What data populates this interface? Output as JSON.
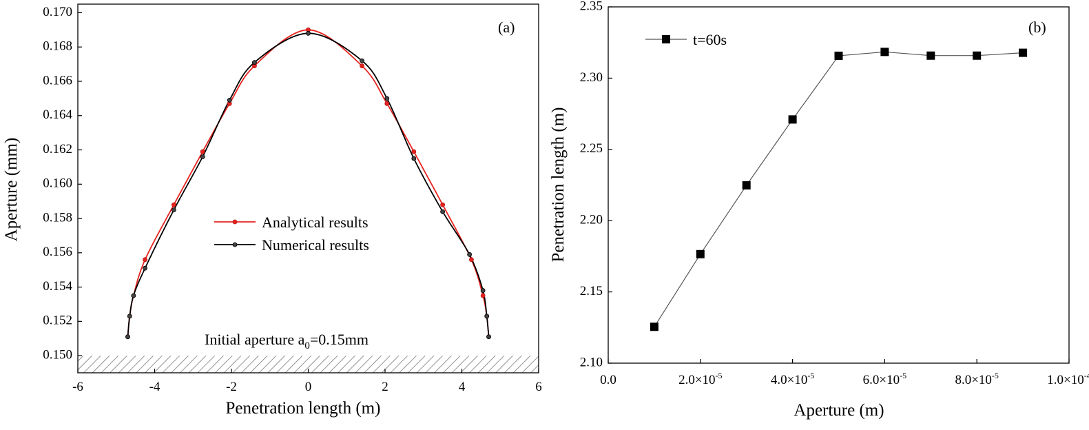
{
  "figure": {
    "panel_a_label": "(a)",
    "panel_b_label": "(b)",
    "note_prefix": "Initial aperture a",
    "note_sub": "0",
    "note_suffix": "=0.15mm"
  },
  "chart_data": [
    {
      "type": "line",
      "panel": "(a)",
      "xlabel": "Penetration length (m)",
      "ylabel": "Aperture (mm)",
      "xlim": [
        -6,
        6
      ],
      "ylim": [
        0.149,
        0.1705
      ],
      "xticks": [
        -6,
        -4,
        -2,
        0,
        2,
        4,
        6
      ],
      "xtick_labels": [
        "-6",
        "-4",
        "-2",
        "0",
        "2",
        "4",
        "6"
      ],
      "yticks": [
        0.15,
        0.152,
        0.154,
        0.156,
        0.158,
        0.16,
        0.162,
        0.164,
        0.166,
        0.168,
        0.17
      ],
      "ytick_labels": [
        "0.150",
        "0.152",
        "0.154",
        "0.156",
        "0.158",
        "0.160",
        "0.162",
        "0.164",
        "0.166",
        "0.168",
        "0.170"
      ],
      "grid": false,
      "legend_position": "center",
      "hatched_band": [
        0.149,
        0.15
      ],
      "series": [
        {
          "name": "Analytical results",
          "color": "#e8231f",
          "x": [
            -4.7,
            -4.65,
            -4.55,
            -4.25,
            -3.5,
            -2.75,
            -2.05,
            -1.4,
            0,
            1.4,
            2.05,
            2.75,
            3.5,
            4.25,
            4.55,
            4.65,
            4.7
          ],
          "y": [
            0.1511,
            0.1523,
            0.1535,
            0.1556,
            0.1588,
            0.1619,
            0.1647,
            0.1669,
            0.169,
            0.1669,
            0.1647,
            0.1619,
            0.1588,
            0.1556,
            0.1535,
            0.1523,
            0.1511
          ]
        },
        {
          "name": "Numerical results",
          "color": "#000000",
          "x": [
            -4.7,
            -4.65,
            -4.55,
            -4.25,
            -3.5,
            -2.75,
            -2.05,
            -1.4,
            0,
            1.4,
            2.05,
            2.75,
            3.5,
            4.2,
            4.55,
            4.65,
            4.7
          ],
          "y": [
            0.1511,
            0.1523,
            0.1535,
            0.1551,
            0.1585,
            0.1616,
            0.1649,
            0.1671,
            0.1688,
            0.1672,
            0.165,
            0.1615,
            0.1584,
            0.1559,
            0.1538,
            0.1523,
            0.1511
          ]
        }
      ]
    },
    {
      "type": "line",
      "panel": "(b)",
      "xlabel": "Aperture (m)",
      "ylabel": "Penetration length (m)",
      "xlim": [
        0,
        0.0001
      ],
      "ylim": [
        2.1,
        2.35
      ],
      "xticks": [
        0,
        2e-05,
        4e-05,
        6e-05,
        8e-05,
        0.0001
      ],
      "xtick_labels": [
        {
          "base": "0.0",
          "exp": ""
        },
        {
          "base": "2.0×10",
          "exp": "-5"
        },
        {
          "base": "4.0×10",
          "exp": "-5"
        },
        {
          "base": "6.0×10",
          "exp": "-5"
        },
        {
          "base": "8.0×10",
          "exp": "-5"
        },
        {
          "base": "1.0×10",
          "exp": "-4"
        }
      ],
      "yticks": [
        2.1,
        2.15,
        2.2,
        2.25,
        2.3,
        2.35
      ],
      "ytick_labels": [
        "2.10",
        "2.15",
        "2.20",
        "2.25",
        "2.30",
        "2.35"
      ],
      "grid": false,
      "legend_position": "top-left",
      "series": [
        {
          "name": "t=60s",
          "color": "#000000",
          "line_color": "#555555",
          "marker": "square",
          "x": [
            1e-05,
            2e-05,
            3e-05,
            4e-05,
            5e-05,
            6e-05,
            7e-05,
            8e-05,
            9e-05
          ],
          "y": [
            2.1255,
            2.1765,
            2.2248,
            2.271,
            2.3157,
            2.3184,
            2.3158,
            2.3158,
            2.3178
          ]
        }
      ]
    }
  ]
}
